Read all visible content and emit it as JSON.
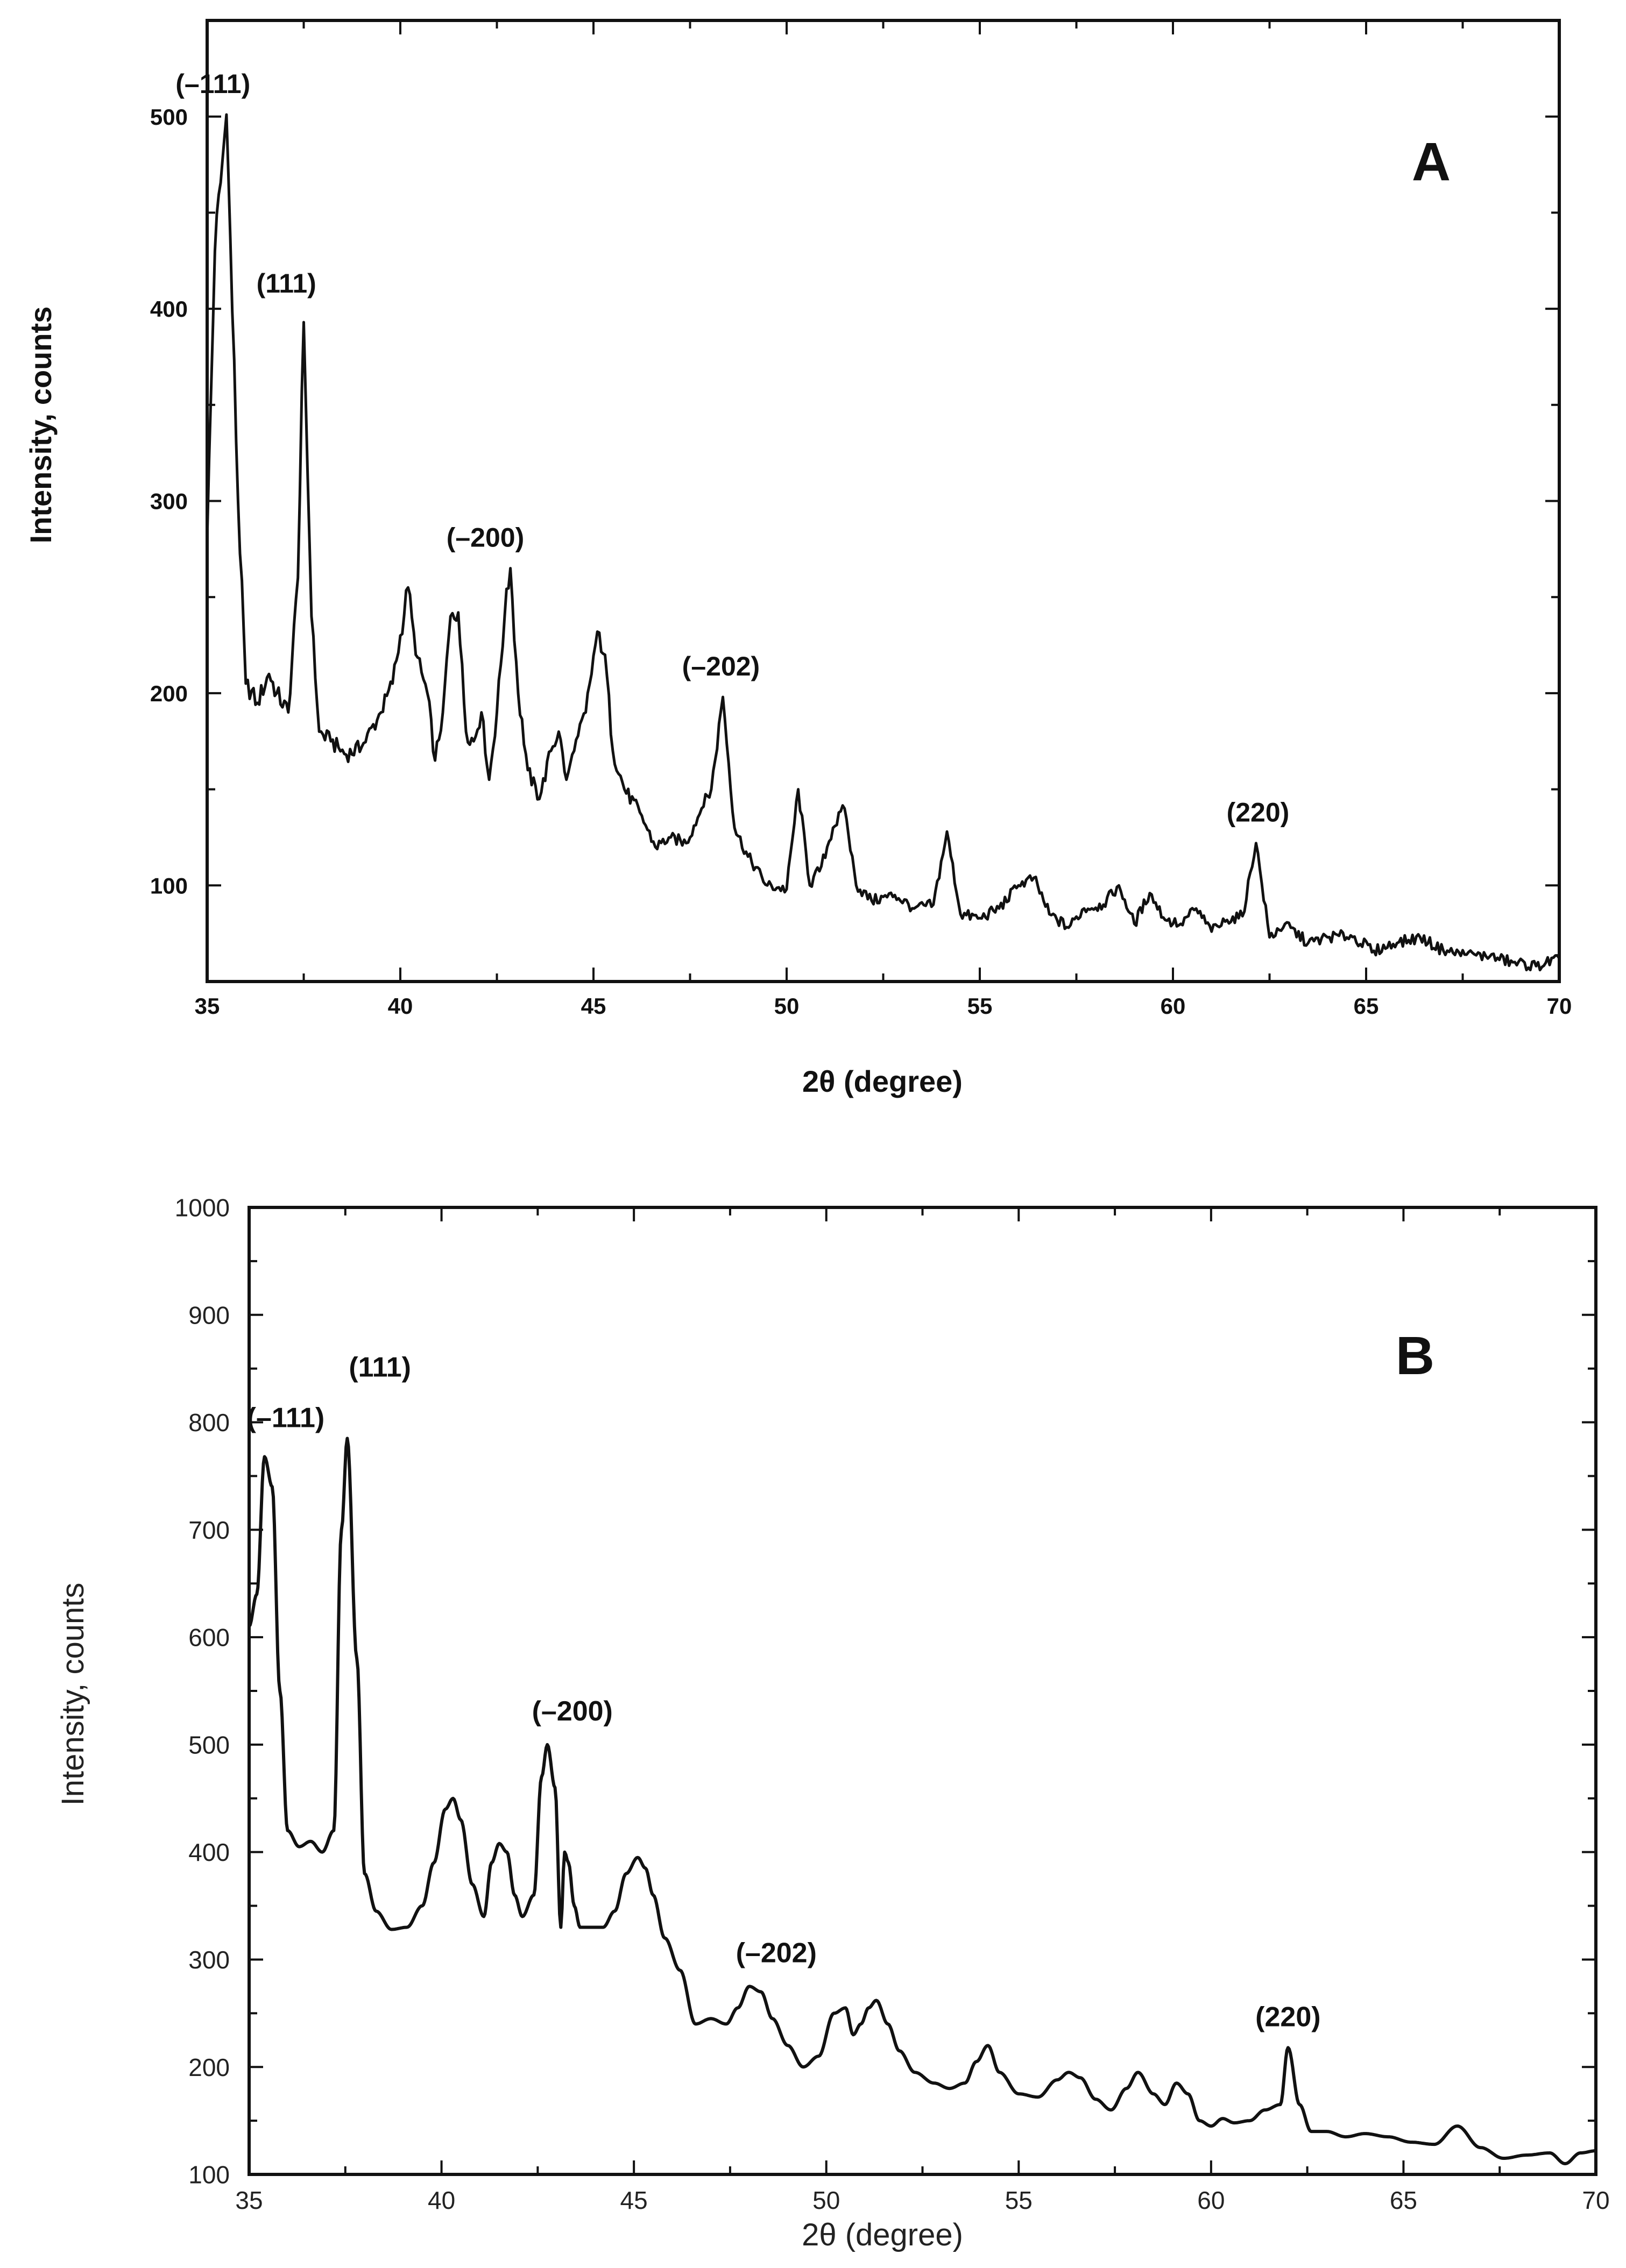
{
  "chart_data": [
    {
      "panel": "A",
      "type": "line",
      "title": "",
      "xlabel": "2θ  (degree)",
      "ylabel": "Intensity, counts",
      "xlim": [
        35,
        70
      ],
      "ylim": [
        50,
        550
      ],
      "xticks": [
        35,
        40,
        45,
        50,
        55,
        60,
        65,
        70
      ],
      "yticks": [
        100,
        200,
        300,
        400,
        500
      ],
      "grid": false,
      "peak_labels": [
        {
          "text": "(–111)",
          "x": 35.5,
          "y": 501
        },
        {
          "text": "(111)",
          "x": 37.5,
          "y": 393
        },
        {
          "text": "(–200)",
          "x": 42.8,
          "y": 265
        },
        {
          "text": "(–202)",
          "x": 48.3,
          "y": 198
        },
        {
          "text": "(220)",
          "x": 62.2,
          "y": 122
        }
      ],
      "series": [
        {
          "name": "A",
          "noise": 3,
          "x": [
            35.0,
            35.2,
            35.5,
            35.8,
            36.0,
            36.3,
            36.6,
            36.8,
            37.1,
            37.35,
            37.5,
            37.7,
            37.9,
            38.2,
            38.6,
            39.0,
            39.5,
            39.8,
            40.0,
            40.2,
            40.4,
            40.7,
            40.9,
            41.1,
            41.3,
            41.5,
            41.7,
            41.9,
            42.1,
            42.3,
            42.5,
            42.7,
            42.85,
            43.05,
            43.3,
            43.6,
            43.9,
            44.1,
            44.3,
            44.5,
            44.8,
            45.1,
            45.3,
            45.5,
            45.8,
            46.2,
            46.6,
            47.0,
            47.4,
            47.8,
            48.05,
            48.35,
            48.65,
            49.0,
            49.5,
            50.0,
            50.3,
            50.6,
            50.9,
            51.2,
            51.5,
            51.8,
            52.2,
            52.8,
            53.3,
            53.8,
            54.15,
            54.5,
            55.0,
            55.5,
            56.0,
            56.4,
            56.8,
            57.3,
            57.7,
            58.2,
            58.6,
            59.0,
            59.4,
            59.8,
            60.2,
            60.6,
            61.0,
            61.4,
            61.8,
            62.15,
            62.5,
            62.9,
            63.5,
            64.0,
            64.6,
            65.2,
            65.8,
            66.4,
            67.0,
            67.6,
            68.2,
            68.8,
            69.4,
            70.0
          ],
          "y": [
            280,
            430,
            501,
            300,
            205,
            195,
            210,
            200,
            190,
            260,
            393,
            240,
            180,
            175,
            168,
            172,
            190,
            205,
            230,
            255,
            220,
            200,
            165,
            190,
            240,
            242,
            180,
            175,
            190,
            155,
            190,
            240,
            265,
            200,
            160,
            145,
            170,
            180,
            155,
            170,
            190,
            232,
            220,
            170,
            150,
            138,
            120,
            125,
            122,
            140,
            150,
            198,
            130,
            115,
            100,
            98,
            150,
            100,
            110,
            130,
            140,
            100,
            92,
            95,
            88,
            90,
            128,
            85,
            83,
            88,
            100,
            104,
            85,
            78,
            88,
            90,
            100,
            80,
            96,
            82,
            80,
            88,
            76,
            82,
            84,
            122,
            73,
            80,
            70,
            73,
            74,
            66,
            70,
            73,
            66,
            64,
            63,
            60,
            58,
            62
          ]
        }
      ]
    },
    {
      "panel": "B",
      "type": "line",
      "title": "",
      "xlabel": "2θ (degree)",
      "ylabel": "Intensity, counts",
      "xlim": [
        35,
        70
      ],
      "ylim": [
        100,
        1000
      ],
      "xticks": [
        35,
        40,
        45,
        50,
        55,
        60,
        65,
        70
      ],
      "yticks": [
        100,
        200,
        300,
        400,
        500,
        600,
        700,
        800,
        900,
        1000
      ],
      "grid": false,
      "peak_labels": [
        {
          "text": "(–111)",
          "x": 35.4,
          "y": 768
        },
        {
          "text": "(111)",
          "x": 37.5,
          "y": 785
        },
        {
          "text": "(–200)",
          "x": 42.7,
          "y": 500
        },
        {
          "text": "(–202)",
          "x": 48.1,
          "y": 275
        },
        {
          "text": "(220)",
          "x": 62.0,
          "y": 218
        }
      ],
      "series": [
        {
          "name": "B",
          "noise": 0,
          "x": [
            35.0,
            35.2,
            35.4,
            35.6,
            35.8,
            36.0,
            36.3,
            36.6,
            36.9,
            37.2,
            37.4,
            37.55,
            37.8,
            38.0,
            38.3,
            38.7,
            39.1,
            39.5,
            39.8,
            40.1,
            40.3,
            40.5,
            40.8,
            41.1,
            41.3,
            41.5,
            41.7,
            41.9,
            42.1,
            42.4,
            42.6,
            42.75,
            42.95,
            43.1,
            43.2,
            43.3,
            43.45,
            43.6,
            43.9,
            44.2,
            44.5,
            44.8,
            45.1,
            45.3,
            45.5,
            45.8,
            46.2,
            46.6,
            47.0,
            47.4,
            47.7,
            48.0,
            48.3,
            48.6,
            49.0,
            49.4,
            49.8,
            50.2,
            50.5,
            50.7,
            50.9,
            51.1,
            51.3,
            51.6,
            51.9,
            52.3,
            52.8,
            53.2,
            53.6,
            53.9,
            54.2,
            54.5,
            55.0,
            55.5,
            56.0,
            56.3,
            56.6,
            57.0,
            57.4,
            57.8,
            58.1,
            58.5,
            58.8,
            59.1,
            59.4,
            59.7,
            60.0,
            60.3,
            60.6,
            61.0,
            61.4,
            61.8,
            62.0,
            62.3,
            62.6,
            63.0,
            63.5,
            64.0,
            64.6,
            65.2,
            65.8,
            66.4,
            67.0,
            67.6,
            68.2,
            68.8,
            69.2,
            69.6,
            70.0
          ],
          "y": [
            610,
            640,
            768,
            740,
            550,
            420,
            405,
            410,
            400,
            420,
            700,
            785,
            580,
            380,
            345,
            328,
            330,
            350,
            390,
            440,
            450,
            430,
            370,
            340,
            390,
            408,
            400,
            360,
            340,
            360,
            470,
            500,
            460,
            330,
            400,
            390,
            350,
            330,
            330,
            330,
            345,
            380,
            395,
            385,
            360,
            320,
            290,
            240,
            245,
            240,
            255,
            275,
            270,
            245,
            220,
            200,
            210,
            250,
            255,
            230,
            240,
            255,
            262,
            240,
            215,
            195,
            185,
            180,
            185,
            205,
            220,
            195,
            175,
            172,
            188,
            195,
            190,
            170,
            160,
            180,
            195,
            175,
            165,
            185,
            175,
            150,
            145,
            152,
            148,
            150,
            160,
            165,
            218,
            165,
            140,
            140,
            135,
            138,
            135,
            130,
            128,
            145,
            125,
            115,
            118,
            120,
            110,
            120,
            122
          ]
        }
      ]
    }
  ],
  "panel_labels": {
    "a": "A",
    "b": "B"
  }
}
